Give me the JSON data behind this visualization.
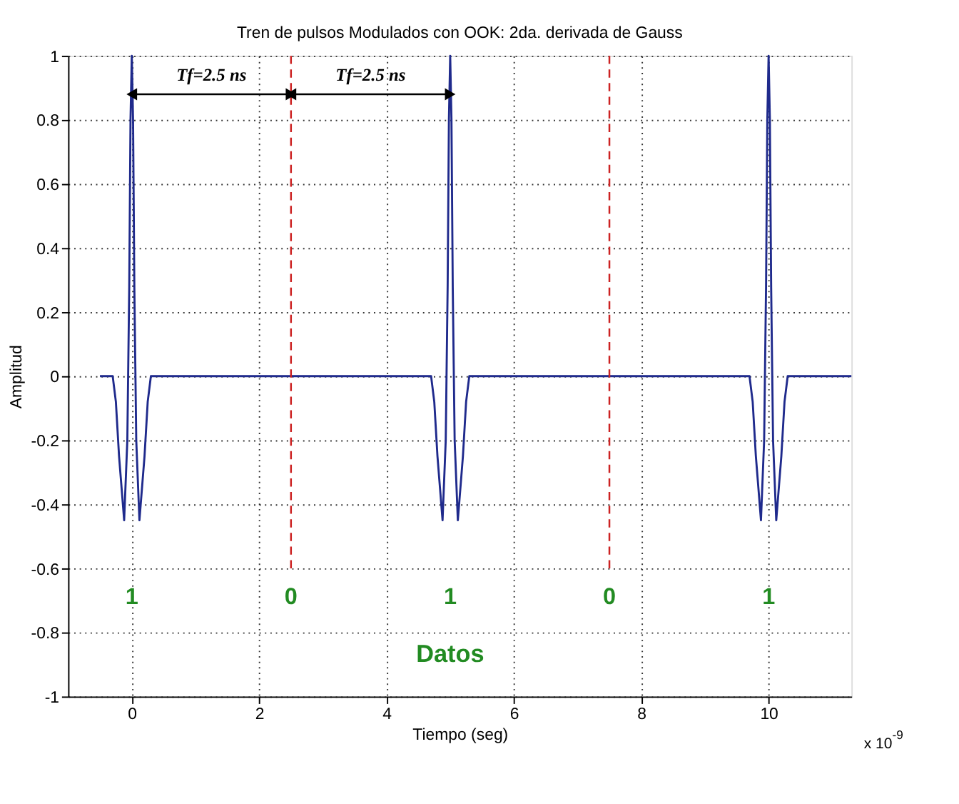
{
  "chart_data": {
    "type": "line",
    "title": "Tren de pulsos Modulados con OOK: 2da. derivada de Gauss",
    "xlabel": "Tiempo (seg)",
    "ylabel": "Amplitud",
    "xlim": [
      -1,
      11.3
    ],
    "ylim": [
      -1,
      1
    ],
    "xticks": [
      0,
      2,
      4,
      6,
      8,
      10
    ],
    "yticks": [
      -1,
      -0.8,
      -0.6,
      -0.4,
      -0.2,
      0,
      0.2,
      0.4,
      0.6,
      0.8,
      1
    ],
    "grid": true,
    "series": [
      {
        "color": "#1f2a8c",
        "line_style": "solid",
        "x": [
          -0.5,
          -0.3,
          -0.25,
          -0.2,
          -0.12,
          -0.07,
          -0.04,
          -0.02,
          0,
          0.02,
          0.04,
          0.07,
          0.12,
          0.2,
          0.25,
          0.3,
          4.7,
          4.75,
          4.8,
          4.88,
          4.93,
          4.96,
          4.98,
          5,
          5.02,
          5.04,
          5.07,
          5.12,
          5.2,
          5.25,
          5.3,
          9.7,
          9.75,
          9.8,
          9.88,
          9.93,
          9.96,
          9.98,
          10,
          10.02,
          10.04,
          10.07,
          10.12,
          10.2,
          10.25,
          10.3,
          11.3
        ],
        "values": [
          0,
          0,
          -0.08,
          -0.25,
          -0.45,
          -0.2,
          0.28,
          0.8,
          1,
          0.8,
          0.28,
          -0.2,
          -0.45,
          -0.25,
          -0.08,
          0,
          0,
          -0.08,
          -0.25,
          -0.45,
          -0.2,
          0.28,
          0.8,
          1,
          0.8,
          0.28,
          -0.2,
          -0.45,
          -0.25,
          -0.08,
          0,
          0,
          -0.08,
          -0.25,
          -0.45,
          -0.2,
          0.28,
          0.8,
          1,
          0.8,
          0.28,
          -0.2,
          -0.45,
          -0.25,
          -0.08,
          0,
          0
        ]
      },
      {
        "color": "#cc2222",
        "line_style": "dashed",
        "x": [
          2.5,
          2.5
        ],
        "values": [
          1,
          -0.6
        ]
      },
      {
        "color": "#cc2222",
        "line_style": "dashed",
        "x": [
          7.5,
          7.5
        ],
        "values": [
          1,
          -0.6
        ]
      },
      {
        "color": "#000000",
        "line_style": "solid",
        "marker": "triangle",
        "x": [
          0,
          2.5
        ],
        "values": [
          0.88,
          0.88
        ]
      },
      {
        "color": "#000000",
        "line_style": "solid",
        "marker": "triangle",
        "x": [
          2.5,
          5
        ],
        "values": [
          0.88,
          0.88
        ]
      }
    ],
    "annotations": [
      "Tf=2.5 ns",
      "Tf=2.5 ns",
      "1",
      "0",
      "1",
      "0",
      "1",
      "Datos",
      "x 10$^{-9}$"
    ]
  }
}
